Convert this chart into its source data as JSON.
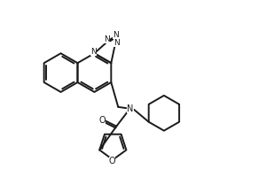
{
  "bg_color": "#ffffff",
  "line_color": "#1a1a1a",
  "line_width": 1.4,
  "figsize": [
    3.0,
    2.0
  ],
  "dpi": 100,
  "xlim": [
    0,
    300
  ],
  "ylim": [
    0,
    200
  ]
}
